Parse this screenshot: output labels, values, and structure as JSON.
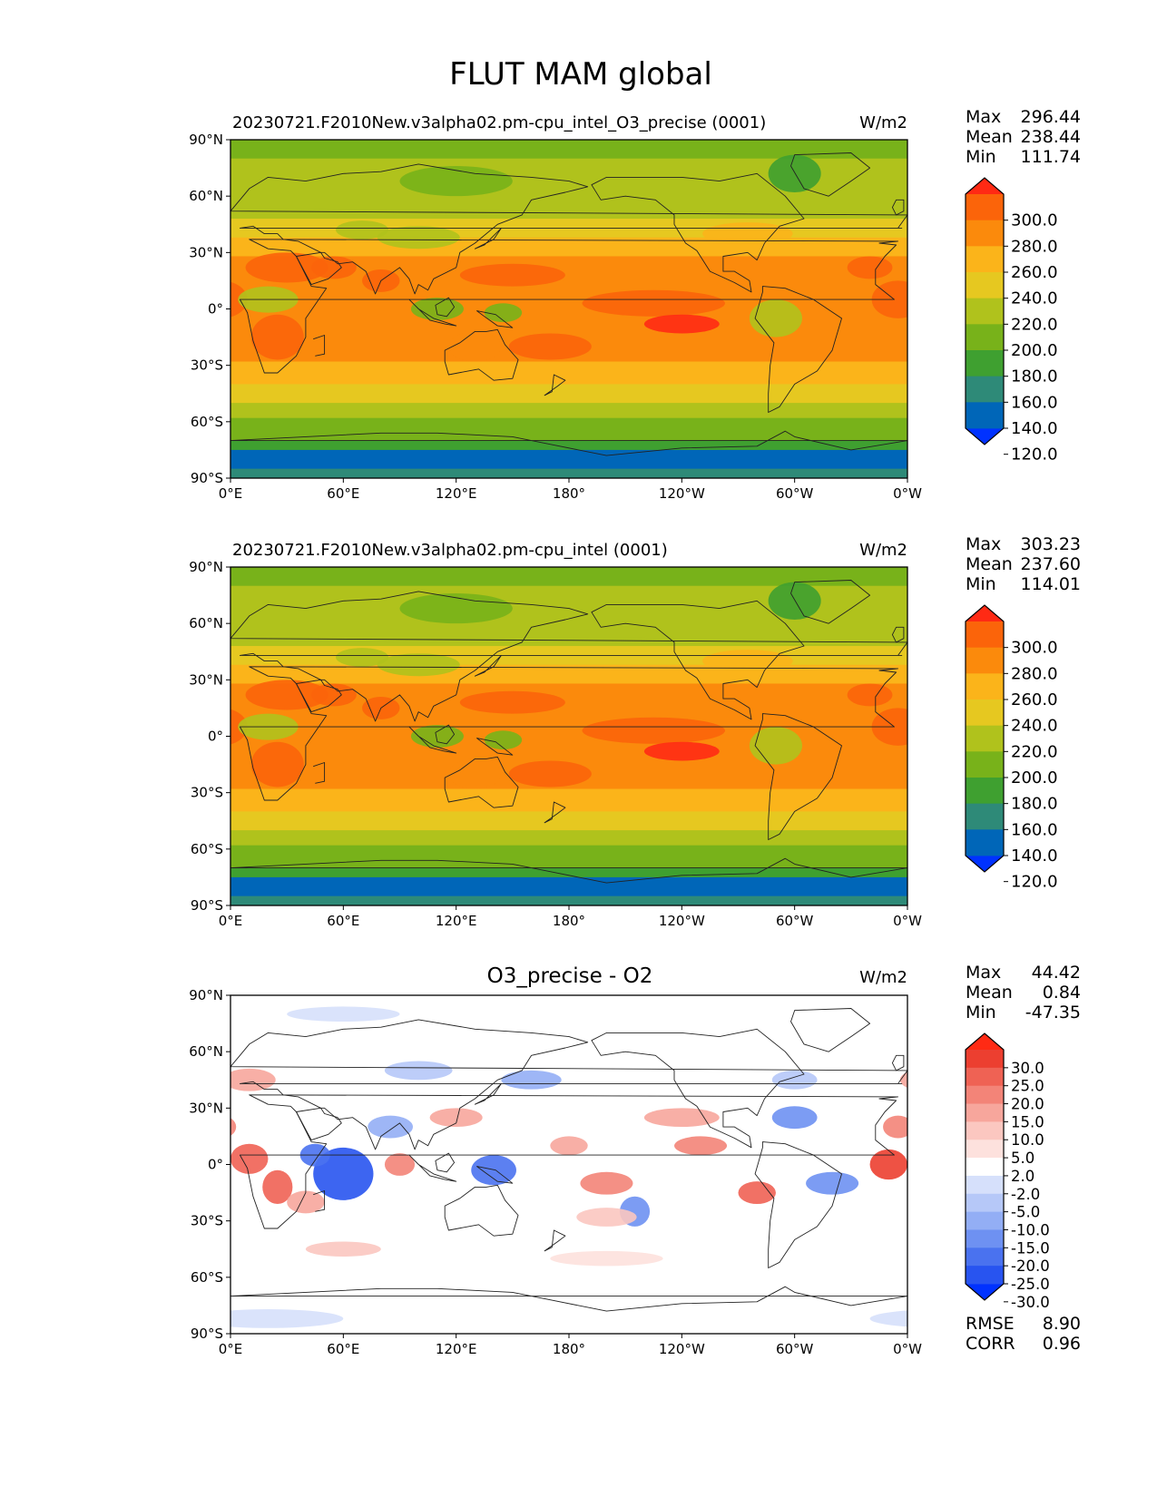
{
  "figure": {
    "title": "FLUT MAM global"
  },
  "axes": {
    "lat_ticks": [
      "90°N",
      "60°N",
      "30°N",
      "0°",
      "30°S",
      "60°S",
      "90°S"
    ],
    "lon_ticks": [
      "0°E",
      "60°E",
      "120°E",
      "180°",
      "120°W",
      "60°W",
      "0°W"
    ],
    "lat_range": [
      -90,
      90
    ],
    "lon_range": [
      0,
      360
    ]
  },
  "colors": {
    "field_levels": [
      "#0032ff",
      "#0066b8",
      "#2e8a78",
      "#3fa030",
      "#78b21a",
      "#b0c21c",
      "#e6c820",
      "#fbb41a",
      "#fb8a0c",
      "#fb640a",
      "#ff2a14"
    ],
    "diff_levels": [
      "#0032ff",
      "#2854f0",
      "#4a72ef",
      "#6e91f2",
      "#93aef5",
      "#b6c8f8",
      "#d6e0fb",
      "#ffffff",
      "#fde1dd",
      "#fbc7c0",
      "#f7a69c",
      "#f38478",
      "#ef6254",
      "#ec3f30",
      "#ff2a14"
    ]
  },
  "chart_data": [
    {
      "type": "heatmap",
      "title": "20230721.F2010New.v3alpha02.pm-cpu_intel_O3_precise (0001)",
      "units": "W/m2",
      "stats": {
        "max_label": "Max",
        "max": "296.44",
        "mean_label": "Mean",
        "mean": "238.44",
        "min_label": "Min",
        "min": "111.74"
      },
      "colorbar_ticks": [
        "300.0",
        "280.0",
        "260.0",
        "240.0",
        "220.0",
        "200.0",
        "180.0",
        "160.0",
        "140.0",
        "120.0"
      ]
    },
    {
      "type": "heatmap",
      "title": "20230721.F2010New.v3alpha02.pm-cpu_intel (0001)",
      "units": "W/m2",
      "stats": {
        "max_label": "Max",
        "max": "303.23",
        "mean_label": "Mean",
        "mean": "237.60",
        "min_label": "Min",
        "min": "114.01"
      },
      "colorbar_ticks": [
        "300.0",
        "280.0",
        "260.0",
        "240.0",
        "220.0",
        "200.0",
        "180.0",
        "160.0",
        "140.0",
        "120.0"
      ]
    },
    {
      "type": "heatmap",
      "title": "O3_precise - O2",
      "units": "W/m2",
      "stats": {
        "max_label": "Max",
        "max": "44.42",
        "mean_label": "Mean",
        "mean": "0.84",
        "min_label": "Min",
        "min": "-47.35"
      },
      "colorbar_ticks": [
        "30.0",
        "25.0",
        "20.0",
        "15.0",
        "10.0",
        "5.0",
        "2.0",
        "-2.0",
        "-5.0",
        "-10.0",
        "-15.0",
        "-20.0",
        "-25.0",
        "-30.0"
      ],
      "metrics": {
        "rmse_label": "RMSE",
        "rmse": "8.90",
        "corr_label": "CORR",
        "corr": "0.96"
      }
    }
  ]
}
